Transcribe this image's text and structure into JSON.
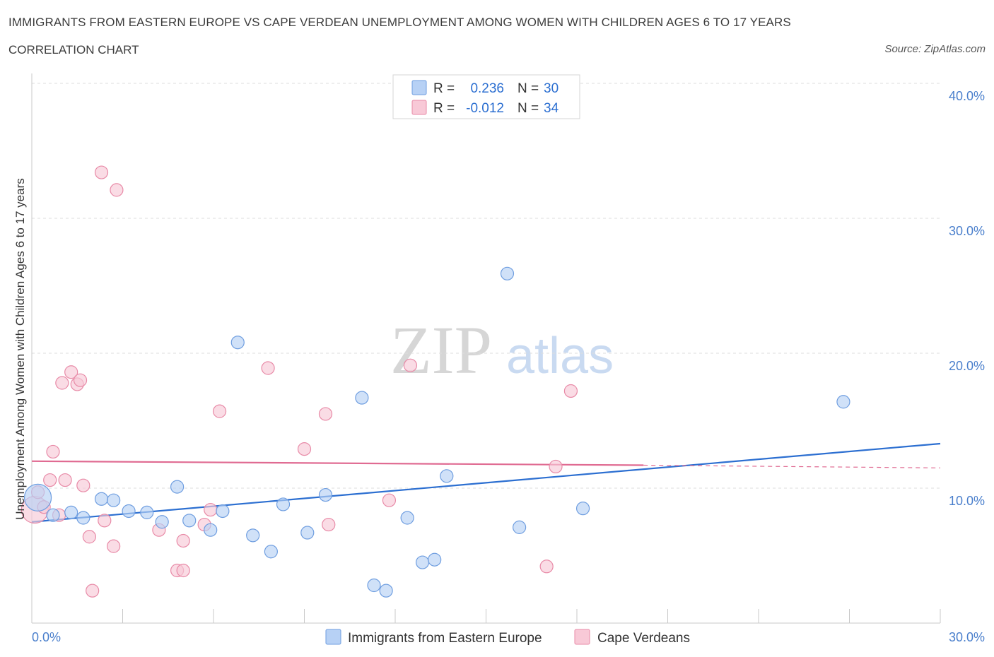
{
  "header": {
    "title": "IMMIGRANTS FROM EASTERN EUROPE VS CAPE VERDEAN UNEMPLOYMENT AMONG WOMEN WITH CHILDREN AGES 6 TO 17 YEARS",
    "subtitle": "CORRELATION CHART",
    "source": "Source: ZipAtlas.com"
  },
  "watermark": {
    "zip": "ZIP",
    "atlas": "atlas"
  },
  "legend": {
    "rows": [
      {
        "r_label": "R =",
        "r_value": "0.236",
        "n_label": "N =",
        "n_value": "30"
      },
      {
        "r_label": "R =",
        "r_value": "-0.012",
        "n_label": "N =",
        "n_value": "34"
      }
    ]
  },
  "colors": {
    "blue_fill": "#b7d1f5",
    "blue_stroke": "#6f9ee0",
    "blue_line": "#2c6fd1",
    "pink_fill": "#f8c9d7",
    "pink_stroke": "#e88aa7",
    "pink_line": "#e06b92",
    "axis_text": "#4a7fcc",
    "grid": "#dddddd"
  },
  "chart_data": {
    "type": "scatter",
    "xlabel": "",
    "ylabel": "Unemployment Among Women with Children Ages 6 to 17 years",
    "xlim": [
      0,
      30
    ],
    "ylim": [
      0,
      40
    ],
    "x_tick_labels": [
      "0.0%",
      "30.0%"
    ],
    "y_tick_labels": [
      "10.0%",
      "20.0%",
      "30.0%",
      "40.0%"
    ],
    "y_ticks": [
      10,
      20,
      30,
      40
    ],
    "grid": true,
    "legend_position": "bottom",
    "series": [
      {
        "name": "Immigrants from Eastern Europe",
        "color": "#6f9ee0",
        "trend": {
          "x": [
            0,
            30
          ],
          "y": [
            7.5,
            13.3
          ],
          "style": "solid"
        },
        "points": [
          {
            "x": 0.2,
            "y": 9.3,
            "big": true
          },
          {
            "x": 0.7,
            "y": 8.0
          },
          {
            "x": 1.3,
            "y": 8.2
          },
          {
            "x": 1.7,
            "y": 7.8
          },
          {
            "x": 2.3,
            "y": 9.2
          },
          {
            "x": 2.7,
            "y": 9.1
          },
          {
            "x": 3.2,
            "y": 8.3
          },
          {
            "x": 3.8,
            "y": 8.2
          },
          {
            "x": 4.3,
            "y": 7.5
          },
          {
            "x": 4.8,
            "y": 10.1
          },
          {
            "x": 5.2,
            "y": 7.6
          },
          {
            "x": 5.9,
            "y": 6.9
          },
          {
            "x": 6.3,
            "y": 8.3
          },
          {
            "x": 6.8,
            "y": 20.8
          },
          {
            "x": 7.3,
            "y": 6.5
          },
          {
            "x": 7.9,
            "y": 5.3
          },
          {
            "x": 8.3,
            "y": 8.8
          },
          {
            "x": 9.1,
            "y": 6.7
          },
          {
            "x": 9.7,
            "y": 9.5
          },
          {
            "x": 10.9,
            "y": 16.7
          },
          {
            "x": 11.3,
            "y": 2.8
          },
          {
            "x": 11.7,
            "y": 2.4
          },
          {
            "x": 12.4,
            "y": 7.8
          },
          {
            "x": 12.9,
            "y": 4.5
          },
          {
            "x": 13.3,
            "y": 4.7
          },
          {
            "x": 13.7,
            "y": 10.9
          },
          {
            "x": 15.7,
            "y": 25.9
          },
          {
            "x": 16.1,
            "y": 7.1
          },
          {
            "x": 18.2,
            "y": 8.5
          },
          {
            "x": 26.8,
            "y": 16.4
          }
        ]
      },
      {
        "name": "Cape Verdeans",
        "color": "#e88aa7",
        "trend": {
          "x": [
            0,
            20.2
          ],
          "y": [
            12.0,
            11.7
          ],
          "style": "solid",
          "dash_x": [
            20.2,
            30
          ],
          "dash_y": [
            11.7,
            11.5
          ]
        },
        "points": [
          {
            "x": 0.1,
            "y": 8.4,
            "big": true
          },
          {
            "x": 0.2,
            "y": 9.7
          },
          {
            "x": 0.4,
            "y": 8.6
          },
          {
            "x": 0.6,
            "y": 10.6
          },
          {
            "x": 0.7,
            "y": 12.7
          },
          {
            "x": 0.9,
            "y": 8.0
          },
          {
            "x": 1.0,
            "y": 17.8
          },
          {
            "x": 1.1,
            "y": 10.6
          },
          {
            "x": 1.3,
            "y": 18.6
          },
          {
            "x": 1.5,
            "y": 17.7
          },
          {
            "x": 1.6,
            "y": 18.0
          },
          {
            "x": 1.7,
            "y": 10.2
          },
          {
            "x": 1.9,
            "y": 6.4
          },
          {
            "x": 2.0,
            "y": 2.4
          },
          {
            "x": 2.3,
            "y": 33.4
          },
          {
            "x": 2.4,
            "y": 7.6
          },
          {
            "x": 2.7,
            "y": 5.7
          },
          {
            "x": 2.8,
            "y": 32.1
          },
          {
            "x": 4.2,
            "y": 6.9
          },
          {
            "x": 4.8,
            "y": 3.9
          },
          {
            "x": 5.0,
            "y": 3.9
          },
          {
            "x": 5.0,
            "y": 6.1
          },
          {
            "x": 5.7,
            "y": 7.3
          },
          {
            "x": 5.9,
            "y": 8.4
          },
          {
            "x": 6.2,
            "y": 15.7
          },
          {
            "x": 7.8,
            "y": 18.9
          },
          {
            "x": 9.0,
            "y": 12.9
          },
          {
            "x": 9.7,
            "y": 15.5
          },
          {
            "x": 9.8,
            "y": 7.3
          },
          {
            "x": 11.8,
            "y": 9.1
          },
          {
            "x": 12.5,
            "y": 19.1
          },
          {
            "x": 17.0,
            "y": 4.2
          },
          {
            "x": 17.3,
            "y": 11.6
          },
          {
            "x": 17.8,
            "y": 17.2
          }
        ]
      }
    ]
  }
}
